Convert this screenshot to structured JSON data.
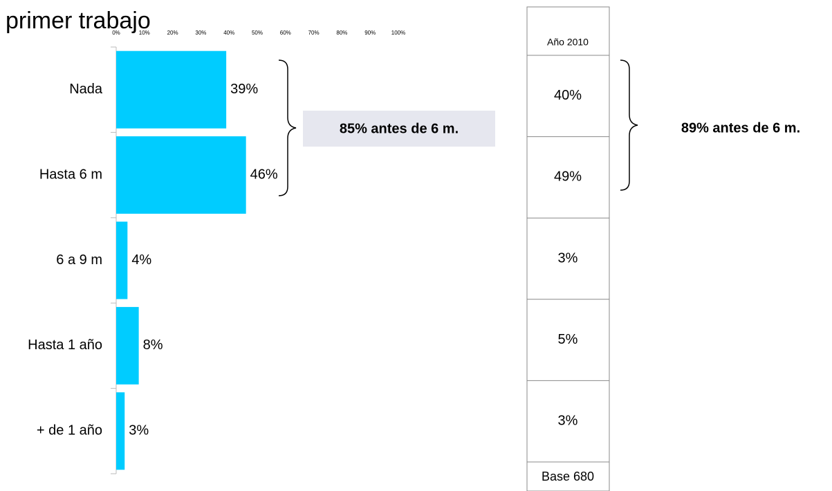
{
  "chart_data": {
    "type": "bar",
    "orientation": "horizontal",
    "title": "primer trabajo",
    "categories": [
      "Nada",
      "Hasta 6 m",
      "6 a 9 m",
      "Hasta 1 año",
      "+ de 1 año"
    ],
    "values": [
      39,
      46,
      4,
      8,
      3
    ],
    "value_labels": [
      "39%",
      "46%",
      "4%",
      "8%",
      "3%"
    ],
    "color": "#00ccff",
    "xlim": [
      0,
      100
    ],
    "xticks": [
      {
        "value": 0,
        "label": "0%"
      },
      {
        "value": 10,
        "label": "10%"
      },
      {
        "value": 20,
        "label": "20%"
      },
      {
        "value": 30,
        "label": "30%"
      },
      {
        "value": 40,
        "label": "40%"
      },
      {
        "value": 50,
        "label": "50%"
      },
      {
        "value": 60,
        "label": "60%"
      },
      {
        "value": 70,
        "label": "70%"
      },
      {
        "value": 80,
        "label": "80%"
      },
      {
        "value": 90,
        "label": "90%"
      },
      {
        "value": 100,
        "label": "100%"
      }
    ],
    "annotation": "85%  antes de 6 m."
  },
  "table": {
    "header": "Año 2010",
    "cells": [
      "40%",
      "49%",
      "3%",
      "5%",
      "3%"
    ],
    "footer": "Base 680",
    "annotation": "89%  antes de 6 m."
  }
}
